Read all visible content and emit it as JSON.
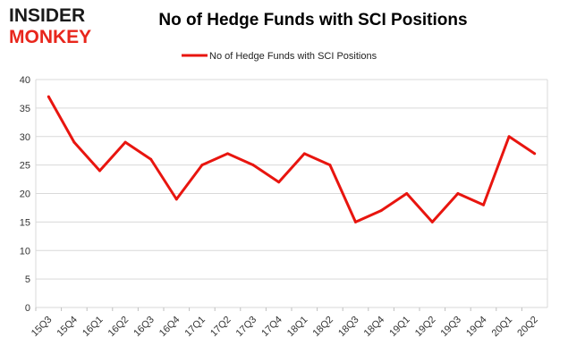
{
  "logo": {
    "line1": "INSIDER",
    "line2": "MONKEY",
    "colors": {
      "dark": "#1a1a1a",
      "red": "#e8261c"
    }
  },
  "chart_data": {
    "type": "line",
    "title": "No of Hedge Funds with SCI Positions",
    "categories": [
      "15Q3",
      "15Q4",
      "16Q1",
      "16Q2",
      "16Q3",
      "16Q4",
      "17Q1",
      "17Q2",
      "17Q3",
      "17Q4",
      "18Q1",
      "18Q2",
      "18Q3",
      "18Q4",
      "19Q1",
      "19Q2",
      "19Q3",
      "19Q4",
      "20Q1",
      "20Q2"
    ],
    "series": [
      {
        "name": "No of Hedge Funds with SCI Positions",
        "color": "#e8150f",
        "values": [
          37,
          29,
          24,
          29,
          26,
          19,
          25,
          27,
          25,
          22,
          27,
          25,
          15,
          17,
          20,
          15,
          20,
          18,
          30,
          27
        ]
      }
    ],
    "ylim": [
      0,
      40
    ],
    "yticks": [
      0,
      5,
      10,
      15,
      20,
      25,
      30,
      35,
      40
    ],
    "grid": true,
    "legend": "top-center",
    "xlabel": "",
    "ylabel": ""
  }
}
